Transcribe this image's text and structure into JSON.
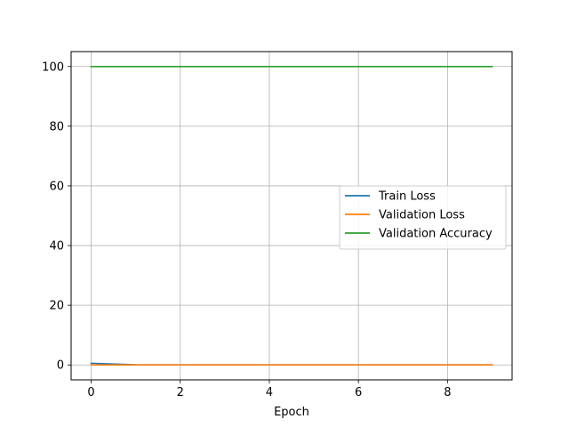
{
  "chart_data": {
    "type": "line",
    "title": "",
    "xlabel": "Epoch",
    "ylabel": "",
    "xlim": [
      -0.45,
      9.45
    ],
    "ylim": [
      -5,
      105
    ],
    "x_ticks": [
      0,
      2,
      4,
      6,
      8
    ],
    "y_ticks": [
      0,
      20,
      40,
      60,
      80,
      100
    ],
    "grid": true,
    "legend_position": "center-right",
    "x": [
      0,
      1,
      2,
      3,
      4,
      5,
      6,
      7,
      8,
      9
    ],
    "series": [
      {
        "name": "Train Loss",
        "color": "#1f77b4",
        "values": [
          0.55,
          0.06,
          0.03,
          0.02,
          0.02,
          0.01,
          0.01,
          0.01,
          0.01,
          0.01
        ]
      },
      {
        "name": "Validation Loss",
        "color": "#ff7f0e",
        "values": [
          0.02,
          0.01,
          0.01,
          0.01,
          0.01,
          0.01,
          0.01,
          0.01,
          0.01,
          0.01
        ]
      },
      {
        "name": "Validation Accuracy",
        "color": "#2ca02c",
        "values": [
          100,
          100,
          100,
          100,
          100,
          100,
          100,
          100,
          100,
          100
        ]
      }
    ]
  }
}
